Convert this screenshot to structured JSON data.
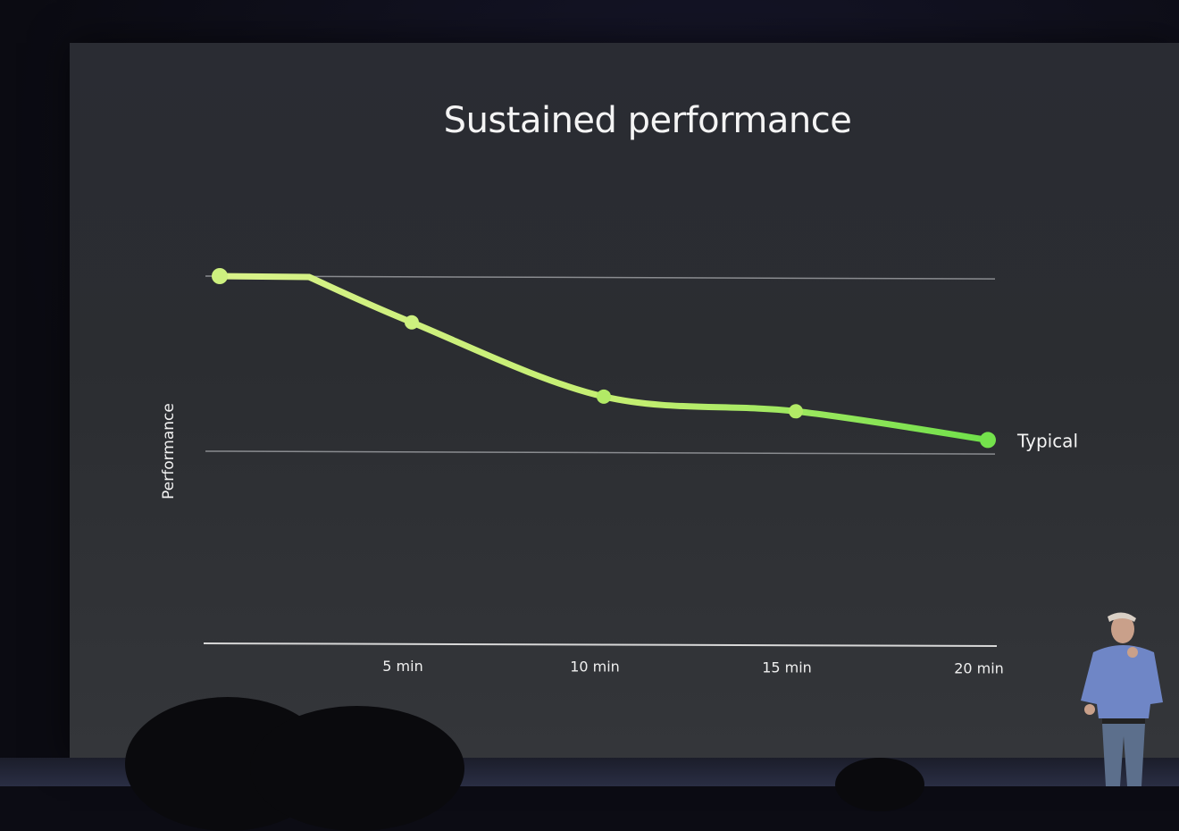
{
  "slide": {
    "title": "Sustained performance"
  },
  "chart_data": {
    "type": "line",
    "title": "Sustained performance",
    "ylabel": "Performance",
    "xlabel": "",
    "xlim": [
      0,
      20
    ],
    "ylim": [
      0,
      1
    ],
    "x_ticks": [
      {
        "value": 5,
        "label": "5 min"
      },
      {
        "value": 10,
        "label": "10 min"
      },
      {
        "value": 15,
        "label": "15 min"
      },
      {
        "value": 20,
        "label": "20 min"
      }
    ],
    "reference_lines": [
      1.0,
      0.5
    ],
    "series": [
      {
        "name": "Typical",
        "color": "#a6e35a",
        "points": [
          {
            "x": 0,
            "y": 1.0
          },
          {
            "x": 5,
            "y": 0.87
          },
          {
            "x": 10,
            "y": 0.66
          },
          {
            "x": 15,
            "y": 0.62
          },
          {
            "x": 20,
            "y": 0.54
          }
        ]
      }
    ],
    "grid": false,
    "legend": "inline-end"
  }
}
